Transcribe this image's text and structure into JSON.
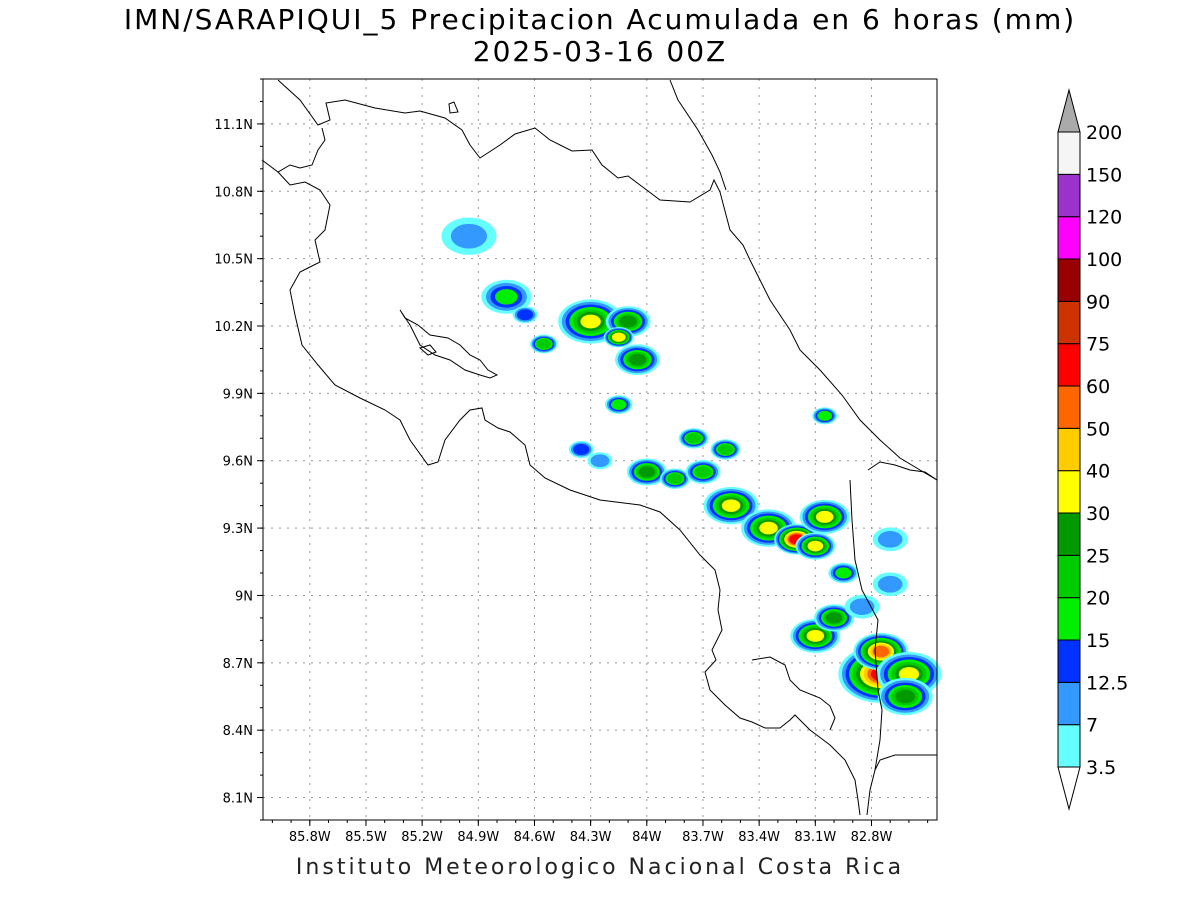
{
  "title_line1": "IMN/SARAPIQUI_5 Precipitacion Acumulada en 6 horas (mm)",
  "title_line2": "2025-03-16 00Z",
  "footer": "Instituto Meteorologico Nacional Costa Rica",
  "map": {
    "lon_labels": [
      "85.8W",
      "85.5W",
      "85.2W",
      "84.9W",
      "84.6W",
      "84.3W",
      "84W",
      "83.7W",
      "83.4W",
      "83.1W",
      "82.8W"
    ],
    "lat_labels": [
      "11.1N",
      "10.8N",
      "10.5N",
      "10.2N",
      "9.9N",
      "9.6N",
      "9.3N",
      "9N",
      "8.7N",
      "8.4N",
      "8.1N"
    ],
    "lon_range": [
      -86.05,
      -82.45
    ],
    "lat_range": [
      8.0,
      11.3
    ],
    "grid": true
  },
  "colorbar": {
    "labels": [
      "3.5",
      "7",
      "12.5",
      "15",
      "20",
      "25",
      "30",
      "40",
      "50",
      "60",
      "75",
      "90",
      "100",
      "120",
      "150",
      "200"
    ],
    "colors": [
      "#66ffff",
      "#3399ff",
      "#0033ff",
      "#00ee00",
      "#00cc00",
      "#009900",
      "#ffff00",
      "#ffcc00",
      "#ff6600",
      "#ff0000",
      "#cc3300",
      "#990000",
      "#ff00ff",
      "#9933cc",
      "#f5f5f5",
      "#aaaaaa"
    ],
    "under_color": "#ffffff",
    "over_color": "#aaaaaa"
  }
}
